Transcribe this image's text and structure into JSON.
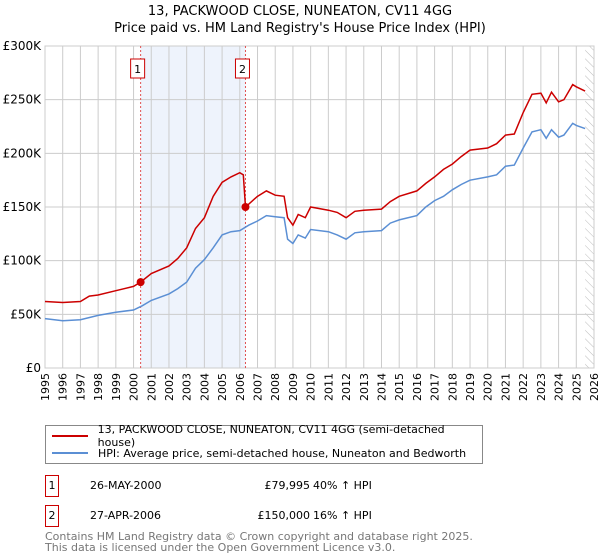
{
  "title": "13, PACKWOOD CLOSE, NUNEATON, CV11 4GG",
  "subtitle": "Price paid vs. HM Land Registry's House Price Index (HPI)",
  "chart_data": {
    "type": "line",
    "xlim": [
      1995,
      2026
    ],
    "ylim": [
      0,
      300000
    ],
    "x_ticks": [
      "1995",
      "1996",
      "1997",
      "1998",
      "1999",
      "2000",
      "2001",
      "2002",
      "2003",
      "2004",
      "2005",
      "2006",
      "2007",
      "2008",
      "2009",
      "2010",
      "2011",
      "2012",
      "2013",
      "2014",
      "2015",
      "2016",
      "2017",
      "2018",
      "2019",
      "2020",
      "2021",
      "2022",
      "2023",
      "2024",
      "2025",
      "2026"
    ],
    "y_ticks": [
      {
        "v": 0,
        "label": "£0"
      },
      {
        "v": 50000,
        "label": "£50K"
      },
      {
        "v": 100000,
        "label": "£100K"
      },
      {
        "v": 150000,
        "label": "£150K"
      },
      {
        "v": 200000,
        "label": "£200K"
      },
      {
        "v": 250000,
        "label": "£250K"
      },
      {
        "v": 300000,
        "label": "£300K"
      }
    ],
    "grid": true,
    "series": [
      {
        "name": "13, PACKWOOD CLOSE, NUNEATON, CV11 4GG (semi-detached house)",
        "color": "#cc0000",
        "x": [
          1995,
          1996,
          1997,
          1997.5,
          1998,
          1999,
          2000,
          2000.4,
          2001,
          2002,
          2002.5,
          2003,
          2003.5,
          2004,
          2004.5,
          2005,
          2005.5,
          2006,
          2006.2,
          2006.32,
          2007,
          2007.5,
          2008,
          2008.5,
          2008.7,
          2009,
          2009.3,
          2009.7,
          2010,
          2011,
          2011.5,
          2012,
          2012.5,
          2013,
          2014,
          2014.5,
          2015,
          2016,
          2016.5,
          2017,
          2017.5,
          2018,
          2018.5,
          2019,
          2020,
          2020.5,
          2021,
          2021.5,
          2022,
          2022.5,
          2023,
          2023.3,
          2023.6,
          2024,
          2024.3,
          2024.8,
          2025,
          2025.5
        ],
        "y": [
          62000,
          61000,
          62000,
          67000,
          68000,
          72000,
          76000,
          79995,
          88000,
          95000,
          102000,
          112000,
          130000,
          140000,
          160000,
          173000,
          178000,
          182000,
          180000,
          150000,
          160000,
          165000,
          161000,
          160000,
          140000,
          133000,
          143000,
          140000,
          150000,
          147000,
          145000,
          140000,
          146000,
          147000,
          148000,
          155000,
          160000,
          165000,
          172000,
          178000,
          185000,
          190000,
          197000,
          203000,
          205000,
          209000,
          217000,
          218000,
          238000,
          255000,
          256000,
          247000,
          257000,
          248000,
          250000,
          264000,
          262000,
          258000
        ]
      },
      {
        "name": "HPI: Average price, semi-detached house, Nuneaton and Bedworth",
        "color": "#5b8fd4",
        "x": [
          1995,
          1996,
          1997,
          1998,
          1999,
          2000,
          2000.5,
          2001,
          2002,
          2002.5,
          2003,
          2003.5,
          2004,
          2004.5,
          2005,
          2005.5,
          2006,
          2006.5,
          2007,
          2007.5,
          2008,
          2008.5,
          2008.7,
          2009,
          2009.3,
          2009.7,
          2010,
          2011,
          2011.5,
          2012,
          2012.5,
          2013,
          2014,
          2014.5,
          2015,
          2016,
          2016.5,
          2017,
          2017.5,
          2018,
          2018.5,
          2019,
          2020,
          2020.5,
          2021,
          2021.5,
          2022,
          2022.5,
          2023,
          2023.3,
          2023.6,
          2024,
          2024.3,
          2024.8,
          2025,
          2025.5
        ],
        "y": [
          46000,
          44000,
          45000,
          49000,
          52000,
          54000,
          58000,
          63000,
          69000,
          74000,
          80000,
          93000,
          101000,
          112000,
          124000,
          127000,
          128000,
          133000,
          137000,
          142000,
          141000,
          140000,
          120000,
          116000,
          124000,
          121000,
          129000,
          127000,
          124000,
          120000,
          126000,
          127000,
          128000,
          135000,
          138000,
          142000,
          150000,
          156000,
          160000,
          166000,
          171000,
          175000,
          178000,
          180000,
          188000,
          189000,
          205000,
          220000,
          222000,
          214000,
          222000,
          215000,
          217000,
          228000,
          226000,
          223000
        ]
      }
    ],
    "sales": [
      {
        "label": "1",
        "x": 2000.4,
        "y": 79995
      },
      {
        "label": "2",
        "x": 2006.32,
        "y": 150000
      }
    ],
    "shaded_range": [
      2000.4,
      2006.32
    ],
    "hatched_from": 2025.5
  },
  "legend": {
    "items": [
      {
        "label": "13, PACKWOOD CLOSE, NUNEATON, CV11 4GG (semi-detached house)",
        "color": "#cc0000"
      },
      {
        "label": "HPI: Average price, semi-detached house, Nuneaton and Bedworth",
        "color": "#5b8fd4"
      }
    ]
  },
  "transactions": [
    {
      "num": "1",
      "date": "26-MAY-2000",
      "price": "£79,995",
      "hpi": "40% ↑ HPI"
    },
    {
      "num": "2",
      "date": "27-APR-2006",
      "price": "£150,000",
      "hpi": "16% ↑ HPI"
    }
  ],
  "footer": {
    "line1": "Contains HM Land Registry data © Crown copyright and database right 2025.",
    "line2": "This data is licensed under the Open Government Licence v3.0."
  }
}
